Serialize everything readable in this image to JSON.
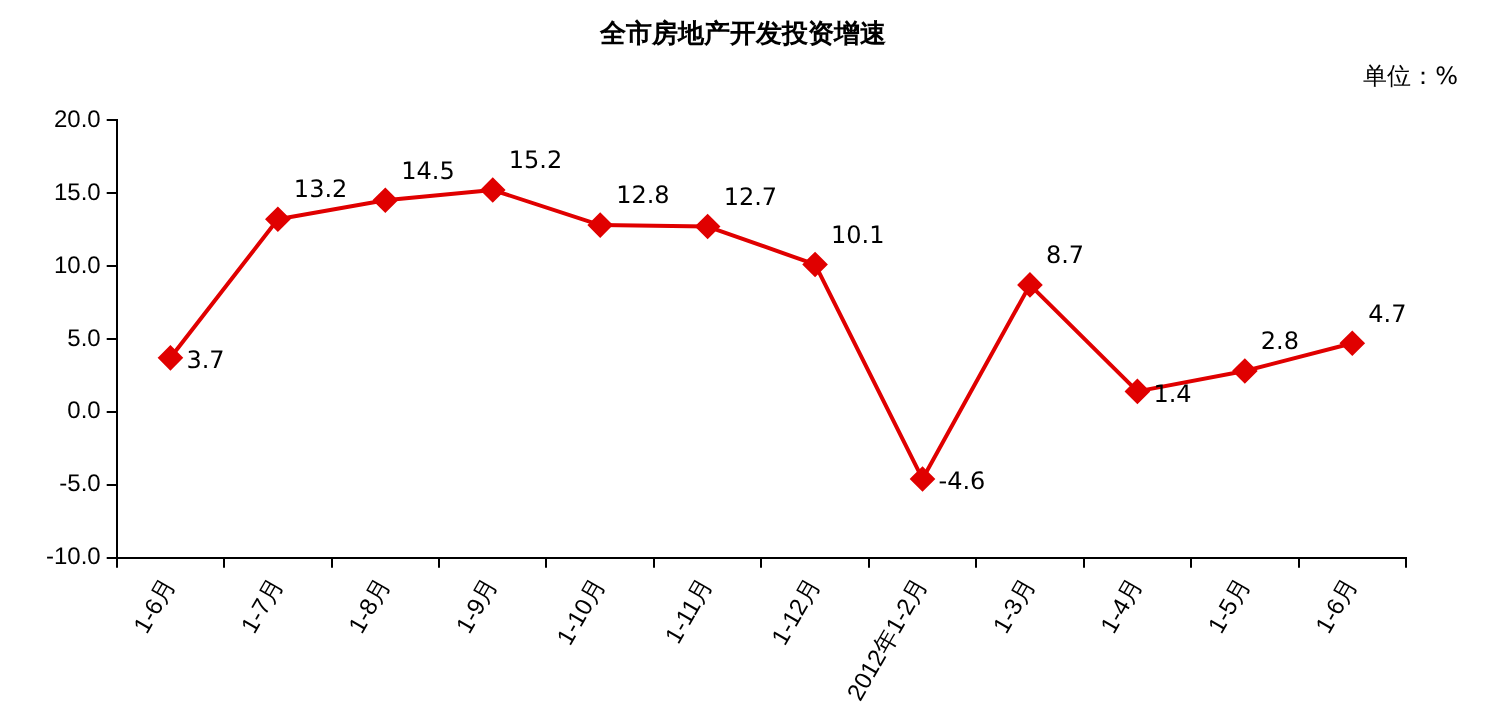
{
  "chart_data": {
    "type": "line",
    "title": "全市房地产开发投资增速",
    "annotations": [
      "单位：%"
    ],
    "categories": [
      "1-6月",
      "1-7月",
      "1-8月",
      "1-9月",
      "1-10月",
      "1-11月",
      "1-12月",
      "2012年1-2月",
      "1-3月",
      "1-4月",
      "1-5月",
      "1-6月"
    ],
    "series": [
      {
        "color": "#e00000",
        "values": [
          3.7,
          13.2,
          14.5,
          15.2,
          12.8,
          12.7,
          10.1,
          -4.6,
          8.7,
          1.4,
          2.8,
          4.7
        ]
      }
    ],
    "ylim": [
      -10,
      20
    ],
    "yticks": [
      {
        "value": -10,
        "label": "-10.0"
      },
      {
        "value": -5,
        "label": "-5.0"
      },
      {
        "value": 0,
        "label": "0.0"
      },
      {
        "value": 5,
        "label": "5.0"
      },
      {
        "value": 10,
        "label": "10.0"
      },
      {
        "value": 15,
        "label": "15.0"
      },
      {
        "value": 20,
        "label": "20.0"
      }
    ],
    "grid": false,
    "legend": false,
    "marker": "diamond",
    "line_style": "solid",
    "data_labels": true
  }
}
